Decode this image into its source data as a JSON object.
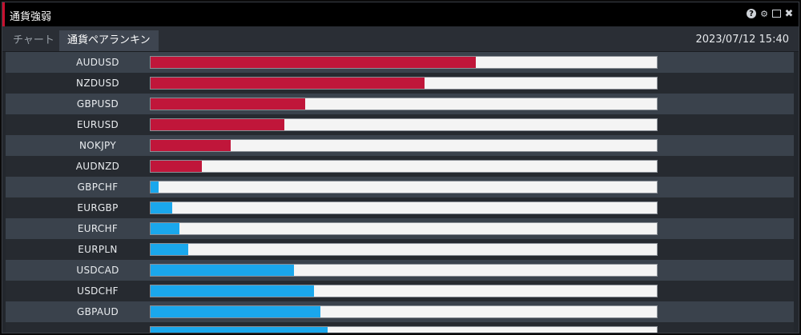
{
  "window": {
    "title": "通貨強弱",
    "controls": [
      "help-icon",
      "gear-icon",
      "maximize-icon",
      "close-icon"
    ]
  },
  "tabs": [
    {
      "label": "チャート",
      "active": false
    },
    {
      "label": "通貨ペアランキング",
      "active": true
    }
  ],
  "timestamp": "2023/07/12 15:40",
  "colors": {
    "positive": "#c0163a",
    "negative": "#1aa7ec"
  },
  "ranking": [
    {
      "pair": "AUDUSD",
      "value": 0.642,
      "direction": "positive"
    },
    {
      "pair": "NZDUSD",
      "value": 0.541,
      "direction": "positive"
    },
    {
      "pair": "GBPUSD",
      "value": 0.306,
      "direction": "positive"
    },
    {
      "pair": "EURUSD",
      "value": 0.264,
      "direction": "positive"
    },
    {
      "pair": "NOKJPY",
      "value": 0.159,
      "direction": "positive"
    },
    {
      "pair": "AUDNZD",
      "value": 0.101,
      "direction": "positive"
    },
    {
      "pair": "GBPCHF",
      "value": 0.016,
      "direction": "negative"
    },
    {
      "pair": "EURGBP",
      "value": 0.043,
      "direction": "negative"
    },
    {
      "pair": "EURCHF",
      "value": 0.057,
      "direction": "negative"
    },
    {
      "pair": "EURPLN",
      "value": 0.074,
      "direction": "negative"
    },
    {
      "pair": "USDCAD",
      "value": 0.283,
      "direction": "negative"
    },
    {
      "pair": "USDCHF",
      "value": 0.322,
      "direction": "negative"
    },
    {
      "pair": "GBPAUD",
      "value": 0.336,
      "direction": "negative"
    },
    {
      "pair": "",
      "value": 0.35,
      "direction": "negative"
    }
  ]
}
